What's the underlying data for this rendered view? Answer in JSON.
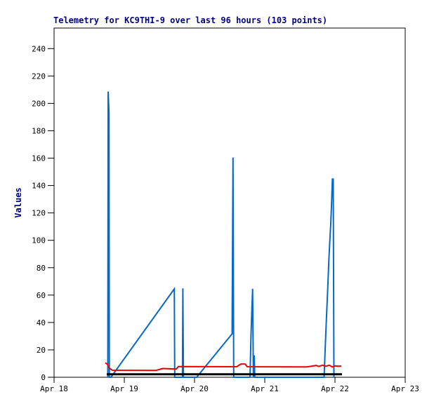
{
  "page": {
    "background": "#ffffff"
  },
  "colors": {
    "title": "#000080",
    "axis": "#000000",
    "background": "#ffffff"
  },
  "chart_data": {
    "type": "line",
    "title": "Telemetry for KC9THI-9 over last 96 hours (103 points)",
    "xlabel": "",
    "ylabel": "Values",
    "grid": false,
    "legend": "none",
    "x_unit": "days since Apr 18 00:00",
    "xlim": [
      0,
      5
    ],
    "ylim": [
      0,
      255
    ],
    "y_ticks": [
      0,
      20,
      40,
      60,
      80,
      100,
      120,
      140,
      160,
      180,
      200,
      220,
      240
    ],
    "x_ticks": [
      {
        "d": 0,
        "label": "Apr 18"
      },
      {
        "d": 1,
        "label": "Apr 19"
      },
      {
        "d": 2,
        "label": "Apr 20"
      },
      {
        "d": 3,
        "label": "Apr 21"
      },
      {
        "d": 4,
        "label": "Apr 22"
      },
      {
        "d": 5,
        "label": "Apr 23"
      }
    ],
    "series": [
      {
        "name": "channel-blue",
        "color": "#0868c8",
        "width": 2,
        "points": [
          [
            0.765,
            0
          ],
          [
            0.77,
            208.6
          ],
          [
            0.782,
            193.3
          ],
          [
            0.787,
            0
          ],
          [
            0.81,
            0
          ],
          [
            1.712,
            64.5
          ],
          [
            1.718,
            0
          ],
          [
            1.828,
            0
          ],
          [
            1.834,
            64.9
          ],
          [
            1.842,
            0
          ],
          [
            2.03,
            0
          ],
          [
            2.535,
            31.7
          ],
          [
            2.548,
            160.5
          ],
          [
            2.558,
            0
          ],
          [
            2.79,
            0
          ],
          [
            2.805,
            32
          ],
          [
            2.817,
            50
          ],
          [
            2.827,
            64.6
          ],
          [
            2.838,
            0
          ],
          [
            2.85,
            16
          ],
          [
            2.858,
            0
          ],
          [
            3.845,
            0
          ],
          [
            3.863,
            24
          ],
          [
            3.88,
            45
          ],
          [
            3.897,
            65
          ],
          [
            3.913,
            86
          ],
          [
            3.93,
            103
          ],
          [
            3.94,
            112
          ],
          [
            3.953,
            129
          ],
          [
            3.963,
            144.7
          ],
          [
            3.975,
            144.7
          ],
          [
            3.985,
            0
          ]
        ]
      },
      {
        "name": "channel-red",
        "color": "#ee0000",
        "width": 2,
        "points": [
          [
            0.73,
            10.5
          ],
          [
            0.76,
            9.5
          ],
          [
            0.79,
            6.5
          ],
          [
            0.83,
            5.1
          ],
          [
            1.45,
            5.0
          ],
          [
            1.55,
            6.4
          ],
          [
            1.74,
            6.0
          ],
          [
            1.77,
            7.8
          ],
          [
            2.6,
            7.7
          ],
          [
            2.66,
            9.7
          ],
          [
            2.72,
            9.7
          ],
          [
            2.75,
            7.7
          ],
          [
            3.6,
            7.6
          ],
          [
            3.73,
            8.6
          ],
          [
            3.77,
            7.9
          ],
          [
            3.82,
            8.8
          ],
          [
            3.87,
            8.1
          ],
          [
            3.92,
            8.8
          ],
          [
            3.96,
            7.5
          ],
          [
            4.0,
            8.3
          ],
          [
            4.05,
            8.0
          ],
          [
            4.09,
            8.2
          ]
        ]
      },
      {
        "name": "channel-black",
        "color": "#000000",
        "width": 3,
        "points": [
          [
            0.75,
            2.2
          ],
          [
            4.1,
            2.2
          ]
        ]
      }
    ]
  }
}
